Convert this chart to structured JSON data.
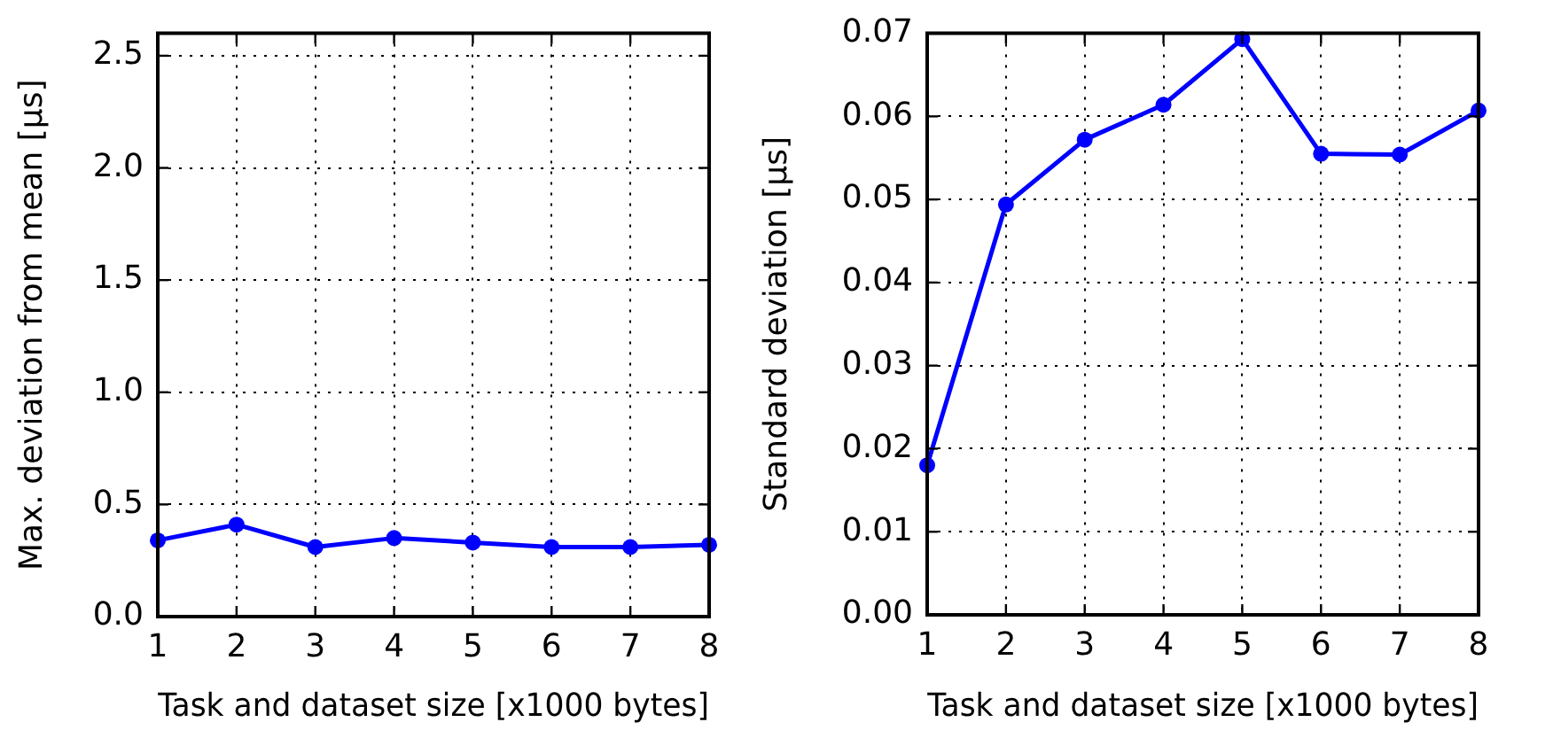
{
  "chart_data": [
    {
      "type": "line",
      "xlabel": "Task and dataset size [x1000 bytes]",
      "ylabel": "Max. deviation from mean [μs]",
      "x": [
        1,
        2,
        3,
        4,
        5,
        6,
        7,
        8
      ],
      "series": [
        {
          "color": "#0000ff",
          "values": [
            0.34,
            0.41,
            0.31,
            0.35,
            0.33,
            0.31,
            0.31,
            0.32
          ]
        }
      ],
      "xlim": [
        1,
        8
      ],
      "xticks": [
        1,
        2,
        3,
        4,
        5,
        6,
        7,
        8
      ],
      "ylim": [
        0,
        2.6
      ],
      "yticks": [
        {
          "value": 0,
          "label": "0.0"
        },
        0.5,
        {
          "value": 1,
          "label": "1.0"
        },
        1.5,
        {
          "value": 2,
          "label": "2.0"
        },
        2.5
      ],
      "grid": true,
      "marker": "circle"
    },
    {
      "type": "line",
      "xlabel": "Task and dataset size [x1000 bytes]",
      "ylabel": "Standard deviation [μs]",
      "x": [
        1,
        2,
        3,
        4,
        5,
        6,
        7,
        8
      ],
      "series": [
        {
          "color": "#0000ff",
          "values": [
            0.018,
            0.0494,
            0.0572,
            0.0614,
            0.0693,
            0.0555,
            0.0554,
            0.0607
          ]
        }
      ],
      "xlim": [
        1,
        8
      ],
      "xticks": [
        1,
        2,
        3,
        4,
        5,
        6,
        7,
        8
      ],
      "ylim": [
        0,
        0.07
      ],
      "yticks": [
        {
          "value": 0,
          "label": "0.00"
        },
        0.01,
        0.02,
        0.03,
        0.04,
        0.05,
        0.06,
        0.07
      ],
      "grid": true,
      "marker": "circle"
    }
  ]
}
